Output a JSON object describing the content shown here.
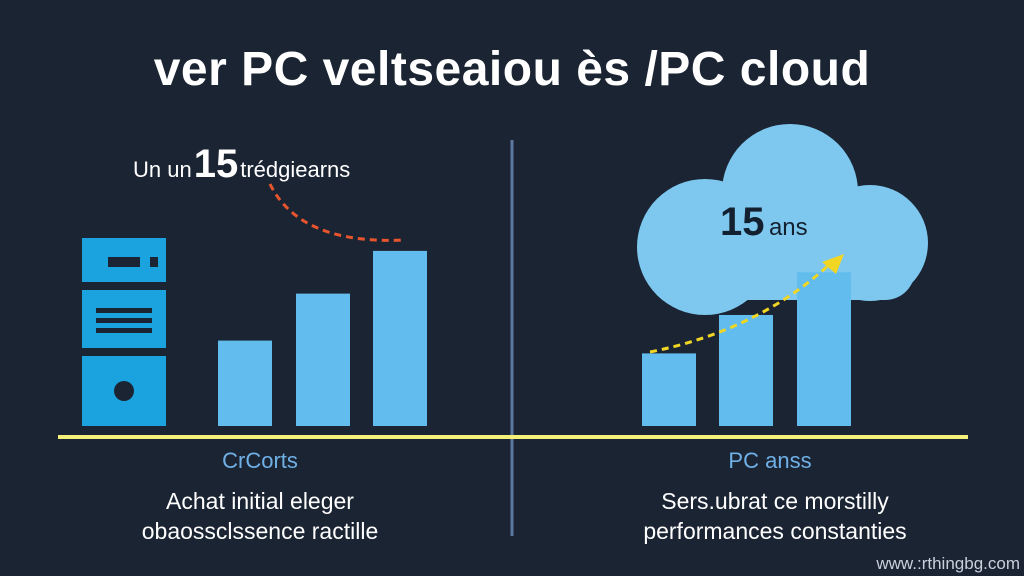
{
  "title": "ver PC veltseaiou ès /PC cloud",
  "colors": {
    "background": "#1b2433",
    "bar": "#62bdee",
    "server": "#1ba3e0",
    "cloud": "#7ec8ef",
    "baseline": "#f4f07a",
    "divider": "#5d79a0",
    "trend_left": "#e8552d",
    "trend_right": "#f1d623",
    "category_label": "#6fb0e6"
  },
  "left": {
    "annotation_prefix": "Un un",
    "annotation_number": "15",
    "annotation_suffix": "trédgiearns",
    "category": "CrCorts",
    "description_lines": [
      "Achat initial eleger",
      "obaossclssence ractille"
    ],
    "icon": "server-icon"
  },
  "right": {
    "annotation_number": "15",
    "annotation_unit": "ans",
    "category": "PC anss",
    "description_lines": [
      "Sers.ubrat ce morstilly",
      "performances constanties"
    ],
    "icon": "cloud-icon"
  },
  "chart_data": [
    {
      "type": "bar",
      "categories": [
        "1",
        "2",
        "3"
      ],
      "values": [
        1.0,
        1.55,
        2.05
      ],
      "ylim": [
        0,
        2.4
      ],
      "trend": "down",
      "grid": false
    },
    {
      "type": "bar",
      "categories": [
        "1",
        "2",
        "3"
      ],
      "values": [
        0.85,
        1.3,
        1.8
      ],
      "ylim": [
        0,
        2.4
      ],
      "trend": "up",
      "grid": false
    }
  ],
  "watermark": "www.:rthingbg.com"
}
